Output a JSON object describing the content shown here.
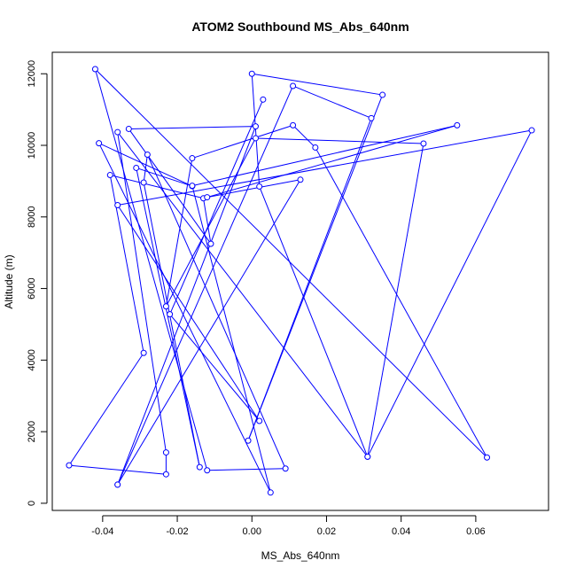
{
  "chart_data": {
    "type": "line",
    "title": "ATOM2 Southbound MS_Abs_640nm",
    "xlabel": "MS_Abs_640nm",
    "ylabel": "Altitude (m)",
    "xlim": [
      -0.0535,
      0.0795
    ],
    "ylim": [
      -200,
      12600
    ],
    "x_ticks": [
      -0.04,
      -0.02,
      0.0,
      0.02,
      0.04,
      0.06
    ],
    "x_tick_labels": [
      "-0.04",
      "-0.02",
      "0.00",
      "0.02",
      "0.04",
      "0.06"
    ],
    "y_ticks": [
      0,
      2000,
      4000,
      6000,
      8000,
      10000,
      12000
    ],
    "y_tick_labels": [
      "0",
      "2000",
      "4000",
      "6000",
      "8000",
      "10000",
      "12000"
    ],
    "grid": false,
    "legend": "none",
    "series": [
      {
        "line_color": "#0000ff",
        "marker": "open-circle",
        "points": [
          {
            "x": 0.003,
            "y": 11280
          },
          {
            "x": -0.022,
            "y": 5280
          },
          {
            "x": 0.002,
            "y": 2300
          },
          {
            "x": -0.036,
            "y": 8330
          },
          {
            "x": 0.075,
            "y": 10420
          },
          {
            "x": 0.031,
            "y": 1300
          },
          {
            "x": -0.036,
            "y": 10370
          },
          {
            "x": -0.023,
            "y": 1420
          },
          {
            "x": -0.023,
            "y": 810
          },
          {
            "x": -0.049,
            "y": 1060
          },
          {
            "x": -0.029,
            "y": 4200
          },
          {
            "x": -0.038,
            "y": 9170
          },
          {
            "x": -0.013,
            "y": 8520
          },
          {
            "x": -0.011,
            "y": 7250
          },
          {
            "x": -0.033,
            "y": 10460
          },
          {
            "x": 0.001,
            "y": 10530
          },
          {
            "x": -0.036,
            "y": 520
          },
          {
            "x": 0.011,
            "y": 11660
          },
          {
            "x": 0.032,
            "y": 10760
          },
          {
            "x": -0.001,
            "y": 1750
          },
          {
            "x": 0.035,
            "y": 11410
          },
          {
            "x": 0.0,
            "y": 12000
          },
          {
            "x": 0.002,
            "y": 8850
          },
          {
            "x": 0.031,
            "y": 1300
          },
          {
            "x": 0.046,
            "y": 10050
          },
          {
            "x": 0.001,
            "y": 10200
          },
          {
            "x": -0.023,
            "y": 5500
          },
          {
            "x": -0.016,
            "y": 9640
          },
          {
            "x": 0.011,
            "y": 10560
          },
          {
            "x": 0.017,
            "y": 9940
          },
          {
            "x": 0.063,
            "y": 1280
          },
          {
            "x": -0.042,
            "y": 12130
          },
          {
            "x": -0.012,
            "y": 920
          },
          {
            "x": 0.009,
            "y": 970
          },
          {
            "x": -0.028,
            "y": 9740
          },
          {
            "x": -0.029,
            "y": 8960
          },
          {
            "x": -0.014,
            "y": 1010
          },
          {
            "x": -0.031,
            "y": 9370
          },
          {
            "x": -0.016,
            "y": 8860
          },
          {
            "x": -0.041,
            "y": 10060
          },
          {
            "x": 0.005,
            "y": 300
          },
          {
            "x": -0.016,
            "y": 8870
          },
          {
            "x": 0.055,
            "y": 10560
          },
          {
            "x": -0.012,
            "y": 8550
          },
          {
            "x": 0.013,
            "y": 9040
          },
          {
            "x": -0.036,
            "y": 520
          }
        ]
      }
    ]
  }
}
